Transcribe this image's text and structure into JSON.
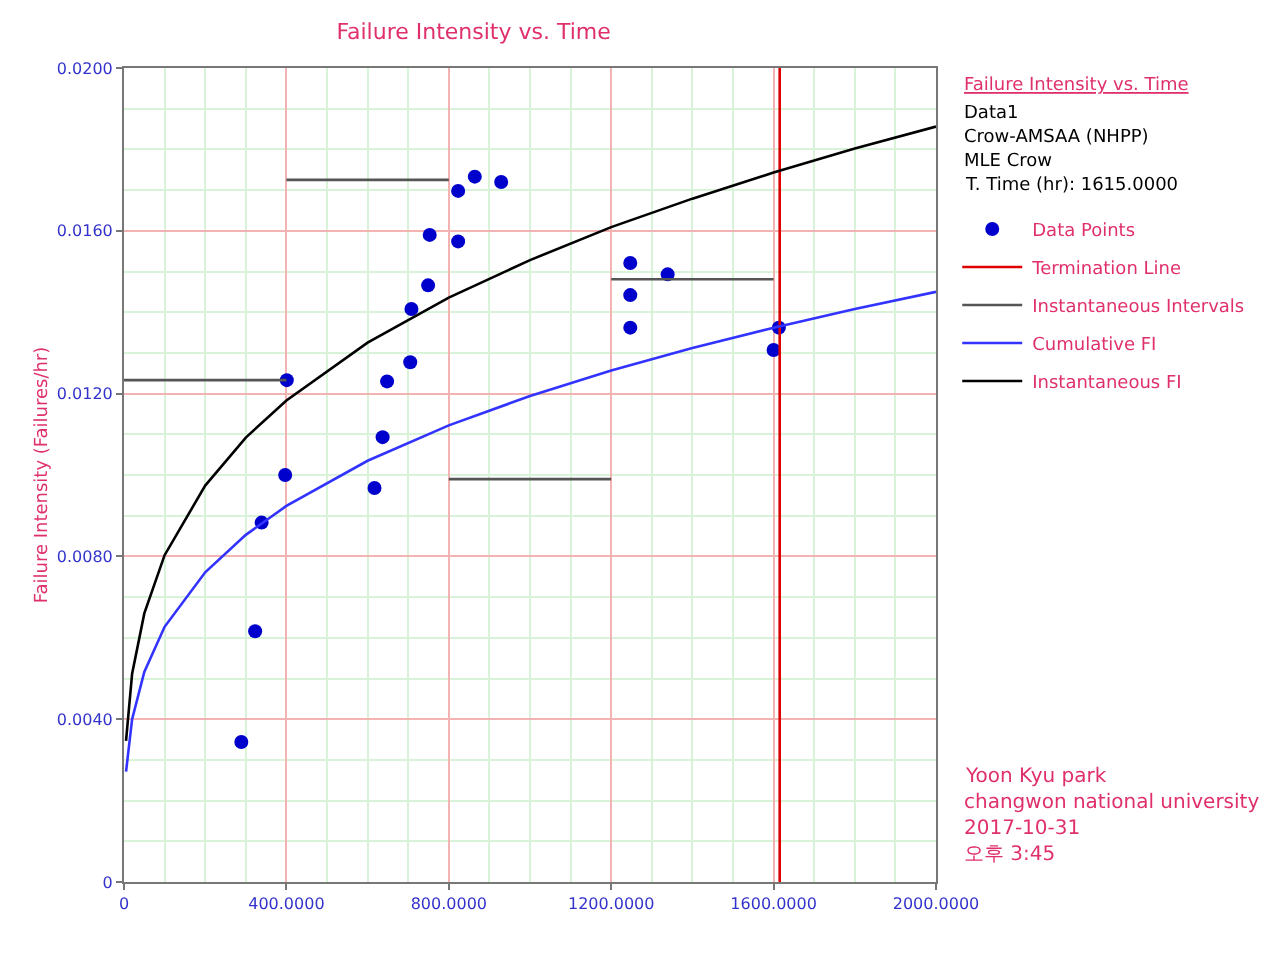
{
  "chart_data": {
    "type": "scatter",
    "title": "Failure Intensity vs. Time",
    "ylabel": "Failure Intensity (Failures/hr)",
    "legend_title": "Failure Intensity vs. Time",
    "annotations": [
      "Data1",
      "Crow-AMSAA (NHPP)",
      "MLE Crow",
      "T. Time (hr): 1615.0000",
      "Yoon Kyu park",
      "changwon national university",
      "2017-10-31",
      "오후 3:45"
    ],
    "xlim": [
      0,
      2000
    ],
    "xticks": [
      0,
      {
        "value": 400,
        "label": "400.0000"
      },
      {
        "value": 800,
        "label": "800.0000"
      },
      {
        "value": 1200,
        "label": "1200.0000"
      },
      {
        "value": 1600,
        "label": "1600.0000"
      },
      {
        "value": 2000,
        "label": "2000.0000"
      }
    ],
    "ylim": [
      0,
      0.02
    ],
    "yticks": [
      0,
      {
        "value": 0.004,
        "label": "0.0040"
      },
      {
        "value": 0.008,
        "label": "0.0080"
      },
      {
        "value": 0.012,
        "label": "0.0120"
      },
      {
        "value": 0.016,
        "label": "0.0160"
      },
      {
        "value": 0.02,
        "label": "0.0200"
      }
    ],
    "grid": true,
    "legend": "right",
    "series": [
      {
        "name": "Data Points",
        "marker": "circle",
        "color": "#0000cc",
        "x": [
          289,
          323,
          339,
          397,
          401,
          617,
          637,
          648,
          705,
          708,
          749,
          753,
          823,
          823,
          864,
          929,
          1247,
          1339,
          1247,
          1247,
          1613,
          1600
        ],
        "values": [
          0.00344,
          0.00616,
          0.00883,
          0.01,
          0.01233,
          0.00968,
          0.01093,
          0.0123,
          0.01277,
          0.01408,
          0.01466,
          0.0159,
          0.01574,
          0.01698,
          0.01733,
          0.0172,
          0.01521,
          0.01493,
          0.01442,
          0.01362,
          0.01362,
          0.01307
        ]
      },
      {
        "name": "Termination Line",
        "type": "line",
        "marker": "none",
        "color": "#dd0000",
        "x": [
          1615,
          1615
        ],
        "values": [
          0,
          0.02
        ]
      },
      {
        "name": "Instantaneous Intervals",
        "type": "line",
        "marker": "none",
        "color": "#555555",
        "x": [
          0,
          400
        ],
        "values": [
          0.01233,
          0.01233
        ]
      },
      {
        "type": "line",
        "marker": "none",
        "color": "#555555",
        "x": [
          400,
          800
        ],
        "values": [
          0.01725,
          0.01725
        ]
      },
      {
        "type": "line",
        "marker": "none",
        "color": "#555555",
        "x": [
          800,
          1200
        ],
        "values": [
          0.0099,
          0.0099
        ]
      },
      {
        "type": "line",
        "marker": "none",
        "color": "#555555",
        "x": [
          1200,
          1600
        ],
        "values": [
          0.01481,
          0.01481
        ]
      },
      {
        "name": "Cumulative FI",
        "type": "line",
        "marker": "none",
        "color": "#3333ff",
        "x": [
          5,
          20,
          50,
          100,
          200,
          300,
          400,
          600,
          800,
          1000,
          1200,
          1400,
          1600,
          1800,
          2000
        ],
        "values": [
          0.00271,
          0.004,
          0.00516,
          0.00627,
          0.00761,
          0.00853,
          0.00924,
          0.01035,
          0.01122,
          0.01194,
          0.01257,
          0.01312,
          0.01362,
          0.01408,
          0.0145
        ]
      },
      {
        "name": "Instantaneous FI",
        "type": "line",
        "marker": "none",
        "color": "#000000",
        "x": [
          5,
          20,
          50,
          100,
          200,
          300,
          400,
          600,
          800,
          1000,
          1200,
          1400,
          1600,
          1800,
          2000
        ],
        "values": [
          0.00347,
          0.00512,
          0.0066,
          0.00803,
          0.00974,
          0.01092,
          0.01183,
          0.01325,
          0.01436,
          0.01528,
          0.01609,
          0.01679,
          0.01743,
          0.01802,
          0.01856
        ]
      }
    ]
  }
}
